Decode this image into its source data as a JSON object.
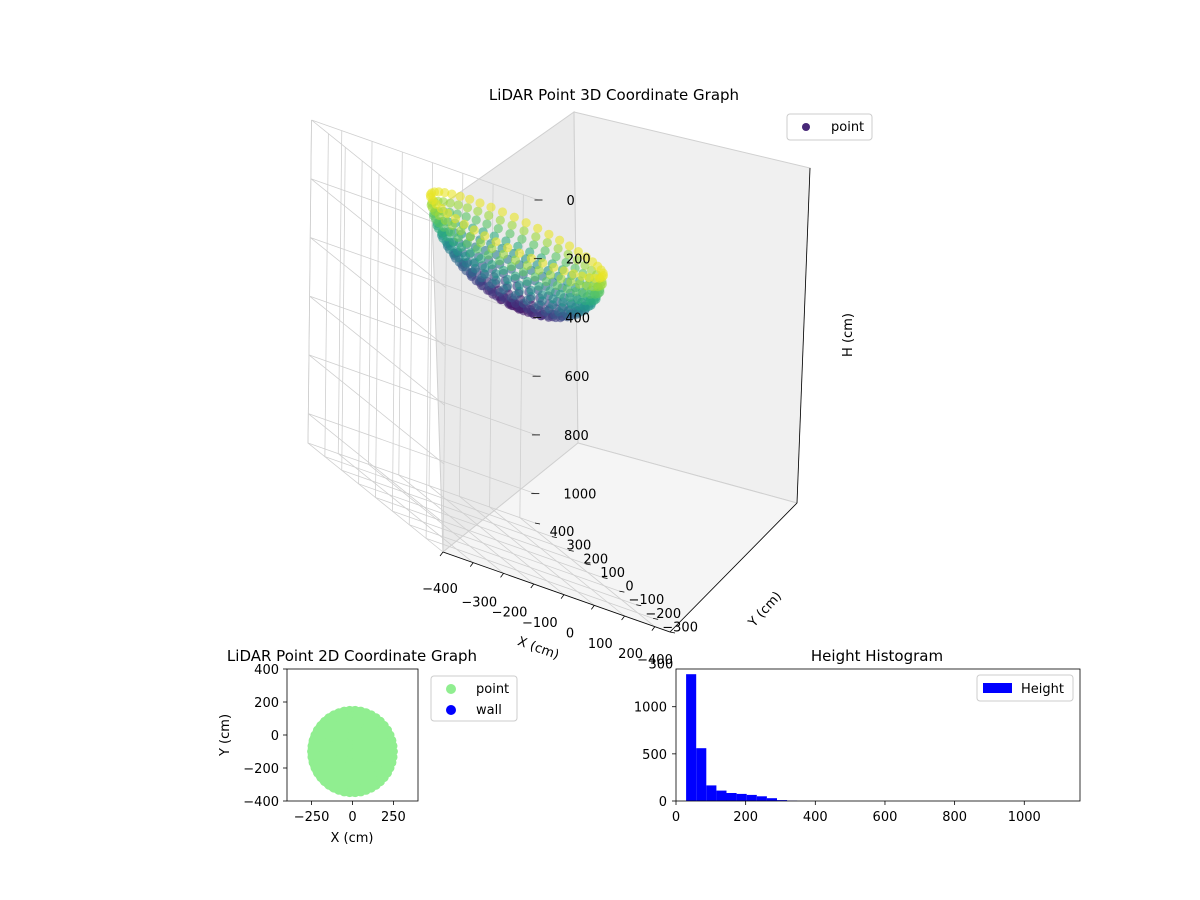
{
  "chart_data": [
    {
      "type": "scatter3d",
      "title": "LiDAR Point 3D Coordinate Graph",
      "xlabel": "X (cm)",
      "ylabel": "Y (cm)",
      "zlabel": "H (cm)",
      "xlim": [
        -400,
        350
      ],
      "ylim": [
        -400,
        400
      ],
      "zlim": [
        0,
        1100
      ],
      "z_inverted": true,
      "xticks": [
        "−400",
        "−300",
        "−200",
        "−100",
        "0",
        "100",
        "200",
        "300"
      ],
      "yticks": [
        "−400",
        "−300",
        "−200",
        "−100",
        "0",
        "100",
        "200",
        "300",
        "400"
      ],
      "zticks": [
        "0",
        "200",
        "400",
        "600",
        "800",
        "1000"
      ],
      "colormap": "viridis",
      "shape": "hemispherical shell, radius ≈ 250 cm, centered near (0, −100), height 0–280 cm",
      "legend": [
        {
          "name": "point",
          "color": "#482878"
        }
      ],
      "legend_position": "top-right"
    },
    {
      "type": "scatter",
      "title": "LiDAR Point 2D Coordinate Graph",
      "xlabel": "X (cm)",
      "ylabel": "Y (cm)",
      "xlim": [
        -400,
        400
      ],
      "ylim": [
        -400,
        400
      ],
      "xticks": [
        "−250",
        "0",
        "250"
      ],
      "yticks": [
        "400",
        "200",
        "0",
        "−200",
        "−400"
      ],
      "series": [
        {
          "name": "point",
          "color": "#90ee90"
        },
        {
          "name": "wall",
          "color": "#0000ff"
        }
      ],
      "legend_position": "outside-right"
    },
    {
      "type": "bar",
      "title": "Height Histogram",
      "xlabel": "",
      "ylabel": "",
      "xlim": [
        0,
        1160
      ],
      "ylim": [
        0,
        1400
      ],
      "bin_width": 29,
      "bin_starts": [
        29,
        58,
        87,
        116,
        145,
        174,
        203,
        232,
        261,
        290,
        319
      ],
      "values": [
        1345,
        560,
        165,
        110,
        85,
        75,
        65,
        50,
        30,
        10,
        3
      ],
      "xticks": [
        "0",
        "200",
        "400",
        "600",
        "800",
        "1000"
      ],
      "yticks": [
        "0",
        "500",
        "1000"
      ],
      "legend": [
        {
          "name": "Height",
          "color": "#0000ff"
        }
      ],
      "legend_position": "top-right"
    }
  ]
}
